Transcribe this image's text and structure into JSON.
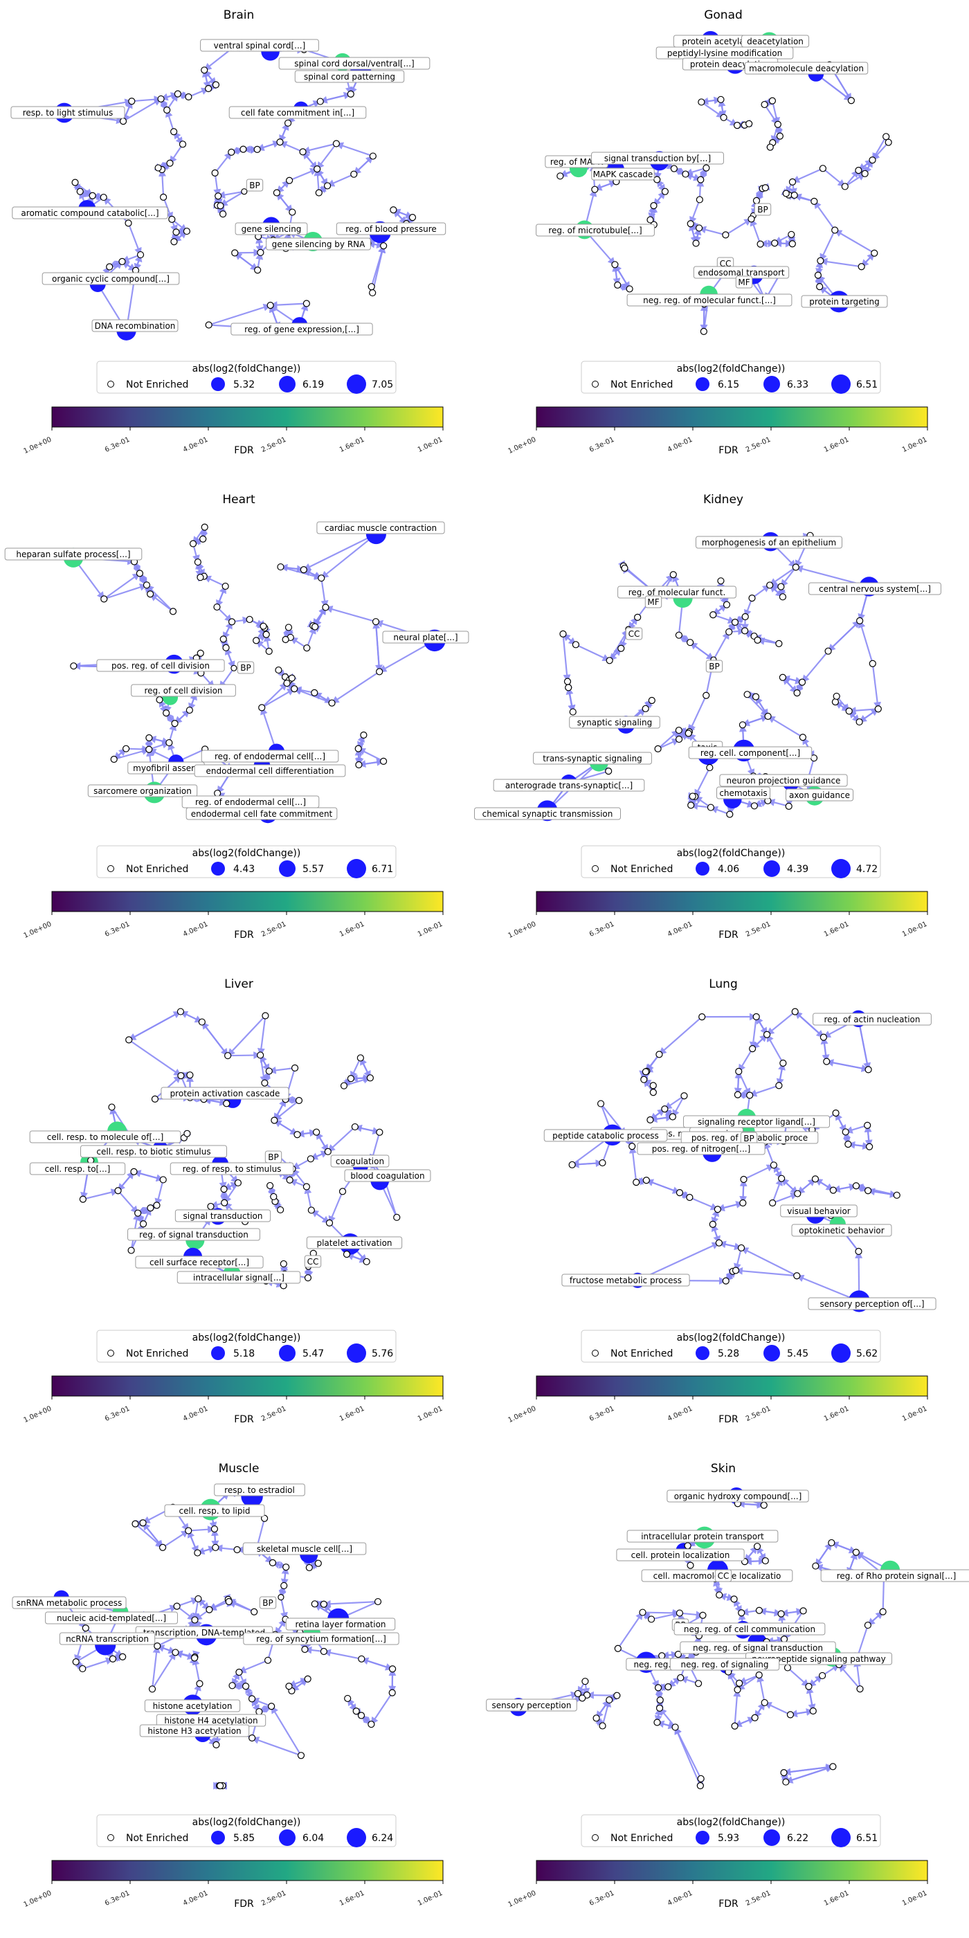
{
  "colors": {
    "edge": "#8b8bf5",
    "enriched_node": "#1a1aff",
    "hub_node": "#3ddc84",
    "open_node_fill": "#ffffff",
    "open_node_stroke": "#000000",
    "colormap": [
      "#440154",
      "#414487",
      "#2a788e",
      "#22a884",
      "#7ad151",
      "#fde725"
    ]
  },
  "legend": {
    "size_title": "abs(log2(foldChange))",
    "not_enriched_label": "Not Enriched",
    "colorbar_label": "FDR",
    "colorbar_ticks": [
      "1.0e+00",
      "6.3e-01",
      "4.0e-01",
      "2.5e-01",
      "1.6e-01",
      "1.0e-01"
    ]
  },
  "panels": [
    {
      "title": "Brain",
      "size_values": [
        "5.32",
        "6.19",
        "7.05"
      ],
      "labels": [
        "ventral spinal cord[...]",
        "spinal cord dorsal/ventral[...]",
        "spinal cord patterning",
        "resp. to light stimulus",
        "cell fate commitment in[...]",
        "BP",
        "aromatic compound catabolic[...]",
        "gene silencing",
        "reg. of blood pressure",
        "gene silencing by RNA",
        "organic cyclic compound[...]",
        "DNA recombination",
        "reg. of gene expression,[...]"
      ]
    },
    {
      "title": "Gonad",
      "size_values": [
        "6.15",
        "6.33",
        "6.51"
      ],
      "labels": [
        "protein acetylation",
        "deacetylation",
        "peptidyl-lysine modification",
        "protein deacylation",
        "macromolecule deacylation",
        "reg. of MAPK",
        "signal transduction by[...]",
        "MAPK cascade",
        "BP",
        "reg. of microtubule[...]",
        "CC",
        "endosomal transport",
        "MF",
        "neg. reg. of molecular funct.[...]",
        "protein targeting"
      ]
    },
    {
      "title": "Heart",
      "size_values": [
        "4.43",
        "5.57",
        "6.71"
      ],
      "labels": [
        "cardiac muscle contraction",
        "heparan sulfate process[...]",
        "neural plate[...]",
        "pos. reg. of cell division",
        "BP",
        "reg. of cell division",
        "reg. of endodermal cell[...]",
        "myofibril assem",
        "endodermal cell differentiation",
        "sarcomere organization",
        "reg. of endodermal cell[...]",
        "endodermal cell fate commitment"
      ]
    },
    {
      "title": "Kidney",
      "size_values": [
        "4.06",
        "4.39",
        "4.72"
      ],
      "labels": [
        "morphogenesis of an epithelium",
        "reg. of molecular funct.",
        "MF",
        "central nervous system[...]",
        "CC",
        "BP",
        "synaptic signaling",
        "taxis",
        "reg. cell. component[...]",
        "trans-synaptic signaling",
        "neuron projection guidance",
        "anterograde trans-synaptic[...]",
        "chemotaxis",
        "axon guidance",
        "chemical synaptic transmission"
      ]
    },
    {
      "title": "Liver",
      "size_values": [
        "5.18",
        "5.47",
        "5.76"
      ],
      "labels": [
        "protein activation cascade",
        "cell. resp. to molecule of[...]",
        "cell. resp. to biotic stimulus",
        "BP",
        "coagulation",
        "cell. resp. to[...]",
        "reg. of resp. to stimulus",
        "blood coagulation",
        "signal transduction",
        "reg. of signal transduction",
        "platelet activation",
        "cell surface receptor[...]",
        "CC",
        "intracellular signal[...]"
      ]
    },
    {
      "title": "Lung",
      "size_values": [
        "5.28",
        "5.45",
        "5.62"
      ],
      "labels": [
        "reg. of actin nucleation",
        "signaling receptor ligand[...]",
        "pos. reg. of m",
        "processing",
        "peptide catabolic process",
        "pos. reg. of metabolic proce",
        "BP",
        "pos. reg. of nitrogen[...]",
        "visual behavior",
        "optokinetic behavior",
        "fructose metabolic process",
        "sensory perception of[...]"
      ]
    },
    {
      "title": "Muscle",
      "size_values": [
        "5.85",
        "6.04",
        "6.24"
      ],
      "labels": [
        "resp. to estradiol",
        "cell. resp. to lipid",
        "skeletal muscle cell[...]",
        "snRNA metabolic process",
        "BP",
        "nucleic acid-templated[...]",
        "retina layer formation",
        "transcription, DNA-templated",
        "ncRNA transcription",
        "reg. of syncytium formation[...]",
        "histone acetylation",
        "histone H4 acetylation",
        "histone H3 acetylation"
      ]
    },
    {
      "title": "Skin",
      "size_values": [
        "5.93",
        "6.22",
        "6.51"
      ],
      "labels": [
        "organic hydroxy compound[...]",
        "intracellular protein transport",
        "cell. protein localization",
        "cell. macromolecule localizatio",
        "CC",
        "reg. of Rho protein signal[...]",
        "BP",
        "neg. reg. of cell communication",
        "neg. reg. of signal transduction",
        "neuropeptide signaling pathway",
        "neg. reg. of",
        "neg. reg. of signaling",
        "sensory perception"
      ]
    }
  ]
}
